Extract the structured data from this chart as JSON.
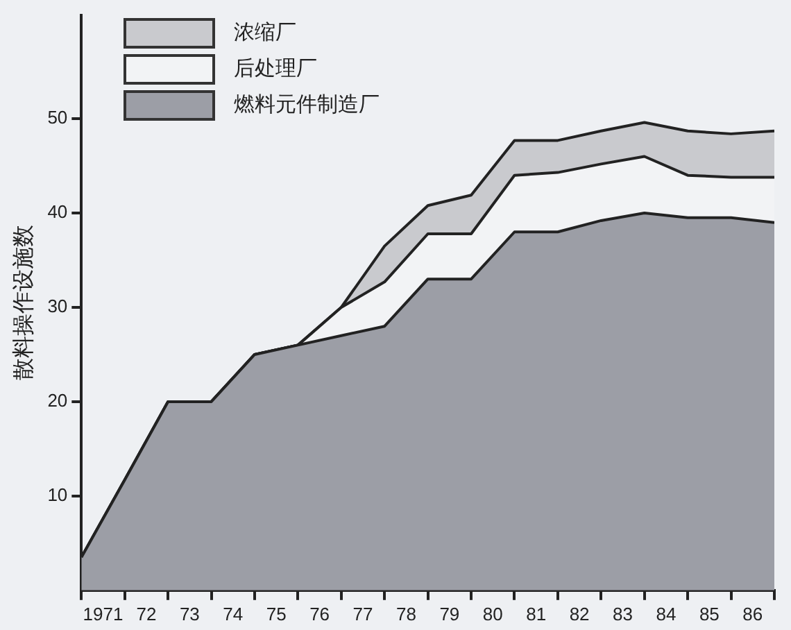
{
  "chart_data": {
    "type": "area",
    "stacked": true,
    "ylabel": "散料操作设施数",
    "x": [
      1970.5,
      1971.5,
      1972.5,
      1973.5,
      1974.5,
      1975.5,
      1976.5,
      1977.5,
      1978.5,
      1979.5,
      1980.5,
      1981.5,
      1982.5,
      1983.5,
      1984.5,
      1985.5,
      1986.5
    ],
    "series": [
      {
        "name": "燃料元件制造厂",
        "color": "#9c9ea6",
        "values": [
          3.5,
          11.7,
          20,
          20,
          25,
          26,
          27,
          28,
          33,
          33,
          38,
          38,
          39.2,
          40,
          39.5,
          39.5,
          39
        ]
      },
      {
        "name": "后处理厂",
        "color": "#f2f3f5",
        "values": [
          0,
          0,
          0,
          0,
          0,
          0,
          3,
          4.7,
          4.8,
          4.8,
          6,
          6.3,
          6,
          6,
          4.5,
          4.3,
          4.8
        ]
      },
      {
        "name": "浓缩厂",
        "color": "#c9cace",
        "values": [
          0,
          0,
          0,
          0,
          0,
          0,
          0,
          3.8,
          3,
          4.1,
          3.7,
          3.4,
          3.5,
          3.6,
          4.7,
          4.6,
          4.9
        ]
      }
    ],
    "xlim": [
      1970.5,
      1986.5
    ],
    "xticks": [
      {
        "value": 1970.5,
        "label": null
      },
      {
        "value": 1971,
        "label": "1971"
      },
      {
        "value": 1971.5,
        "label": null
      },
      {
        "value": 1972,
        "label": "72"
      },
      {
        "value": 1972.5,
        "label": null
      },
      {
        "value": 1973,
        "label": "73"
      },
      {
        "value": 1973.5,
        "label": null
      },
      {
        "value": 1974,
        "label": "74"
      },
      {
        "value": 1974.5,
        "label": null
      },
      {
        "value": 1975,
        "label": "75"
      },
      {
        "value": 1975.5,
        "label": null
      },
      {
        "value": 1976,
        "label": "76"
      },
      {
        "value": 1976.5,
        "label": null
      },
      {
        "value": 1977,
        "label": "77"
      },
      {
        "value": 1977.5,
        "label": null
      },
      {
        "value": 1978,
        "label": "78"
      },
      {
        "value": 1978.5,
        "label": null
      },
      {
        "value": 1979,
        "label": "79"
      },
      {
        "value": 1979.5,
        "label": null
      },
      {
        "value": 1980,
        "label": "80"
      },
      {
        "value": 1980.5,
        "label": null
      },
      {
        "value": 1981,
        "label": "81"
      },
      {
        "value": 1981.5,
        "label": null
      },
      {
        "value": 1982,
        "label": "82"
      },
      {
        "value": 1982.5,
        "label": null
      },
      {
        "value": 1983,
        "label": "83"
      },
      {
        "value": 1983.5,
        "label": null
      },
      {
        "value": 1984,
        "label": "84"
      },
      {
        "value": 1984.5,
        "label": null
      },
      {
        "value": 1985,
        "label": "85"
      },
      {
        "value": 1985.5,
        "label": null
      },
      {
        "value": 1986,
        "label": "86"
      },
      {
        "value": 1986.5,
        "label": null
      }
    ],
    "ylim": [
      0,
      61
    ],
    "yticks": [
      10,
      20,
      30,
      40,
      50
    ],
    "grid": false,
    "legend": "top left"
  }
}
